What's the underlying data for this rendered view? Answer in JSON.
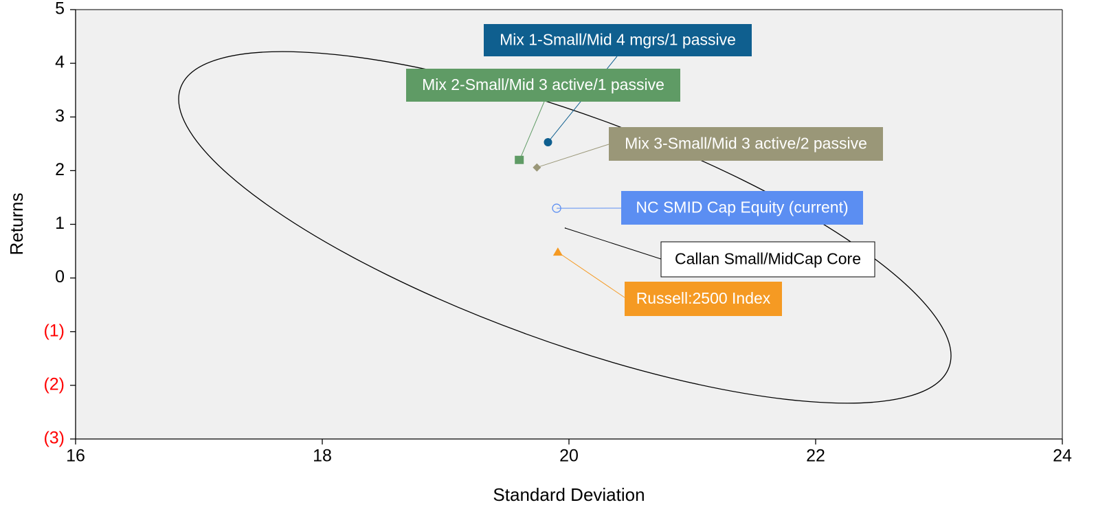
{
  "chart_data": {
    "type": "scatter",
    "x_label": "Standard Deviation",
    "y_label": "Returns",
    "xlim": [
      16,
      24
    ],
    "ylim": [
      -3,
      5
    ],
    "xticks": [
      16,
      18,
      20,
      22,
      24
    ],
    "yticks": [
      5,
      4,
      3,
      2,
      1,
      0,
      {
        "value": -1,
        "label": "(1)"
      },
      {
        "value": -2,
        "label": "(2)"
      },
      {
        "value": -3,
        "label": "(3)"
      }
    ],
    "negative_tick_color": "#ff0000",
    "grid": false,
    "plot_background": "#f0f0f0",
    "series": [
      {
        "name": "Mix 1-Small/Mid 4 mgrs/1 passive",
        "color": "#0f5f8f",
        "marker": "circle",
        "x": [
          19.83
        ],
        "values": [
          2.53
        ]
      },
      {
        "name": "Mix 2-Small/Mid 3 active/1 passive",
        "color": "#5f9b65",
        "marker": "square",
        "x": [
          19.6
        ],
        "values": [
          2.2
        ]
      },
      {
        "name": "Mix 3-Small/Mid 3 active/2 passive",
        "color": "#9a9778",
        "marker": "diamond",
        "x": [
          19.74
        ],
        "values": [
          2.06
        ]
      },
      {
        "name": "NC SMID Cap Equity (current)",
        "color": "#5b8ef2",
        "marker": "open-circle",
        "x": [
          19.9
        ],
        "values": [
          1.3
        ]
      },
      {
        "name": "Callan Small/MidCap Core",
        "color": "#000000",
        "marker": "none",
        "x": [
          19.97
        ],
        "values": [
          0.93
        ]
      },
      {
        "name": "Russell:2500 Index",
        "color": "#f59a23",
        "marker": "triangle",
        "x": [
          19.91
        ],
        "values": [
          0.48
        ]
      }
    ]
  }
}
